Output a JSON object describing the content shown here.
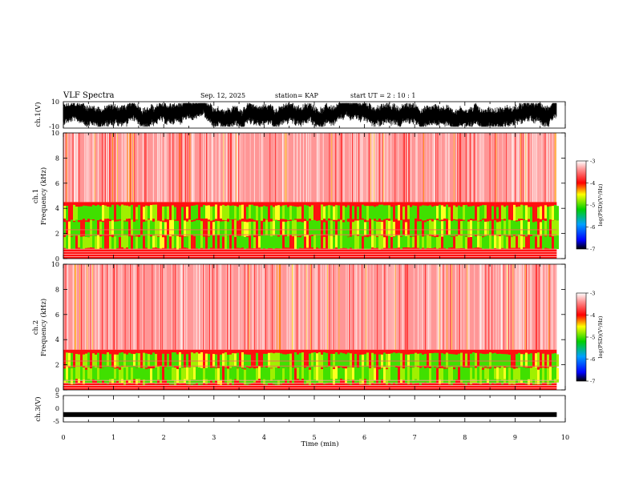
{
  "header": {
    "title": "VLF Spectra",
    "date": "Sep. 12, 2025",
    "station": "station= KAP",
    "start_ut": "start  UT =   2  : 10 : 1"
  },
  "chart_data": [
    {
      "type": "line",
      "id": "ch1-waveform",
      "ylabel": "ch.1(V)",
      "ylim": [
        -10,
        10
      ],
      "yticks": [
        "10",
        "-10"
      ],
      "xlim": [
        0,
        10
      ],
      "data_end_min": 9.83,
      "description_value_range": [
        -8,
        8
      ]
    },
    {
      "type": "heatmap",
      "id": "ch1-spectrogram",
      "ylabel_line1": "ch.1",
      "ylabel_line2": "Frequency  (kHz)",
      "ylim": [
        0,
        10
      ],
      "yticks": [
        "0",
        "2",
        "4",
        "6",
        "8",
        "10"
      ],
      "xlim": [
        0,
        10
      ],
      "data_end_min": 9.83,
      "band_top_khz": 4.5,
      "colorbar": {
        "label": "log(PSD)(V²/Hz)",
        "ticks": [
          "-3",
          "-4",
          "-5",
          "-6",
          "-7"
        ],
        "range": [
          -7,
          -3
        ]
      }
    },
    {
      "type": "heatmap",
      "id": "ch2-spectrogram",
      "ylabel_line1": "ch.2",
      "ylabel_line2": "Frequency  (kHz)",
      "ylim": [
        0,
        10
      ],
      "yticks": [
        "0",
        "2",
        "4",
        "6",
        "8",
        "10"
      ],
      "xlim": [
        0,
        10
      ],
      "data_end_min": 9.83,
      "band_top_khz": 3.2,
      "colorbar": {
        "label": "log(PSD)(V²/Hz)",
        "ticks": [
          "-3",
          "-4",
          "-5",
          "-6",
          "-7"
        ],
        "range": [
          -7,
          -3
        ]
      }
    },
    {
      "type": "line",
      "id": "ch3-waveform",
      "ylabel": "ch.3(V)",
      "ylim": [
        -5,
        5
      ],
      "yticks": [
        "5",
        "0",
        "-5"
      ],
      "xlim": [
        0,
        10
      ],
      "data_end_min": 9.83,
      "trace_level_v": -2.2,
      "xlabel": "Time  (min)",
      "xticks": [
        "0",
        "1",
        "2",
        "3",
        "4",
        "5",
        "6",
        "7",
        "8",
        "9",
        "10"
      ]
    }
  ]
}
